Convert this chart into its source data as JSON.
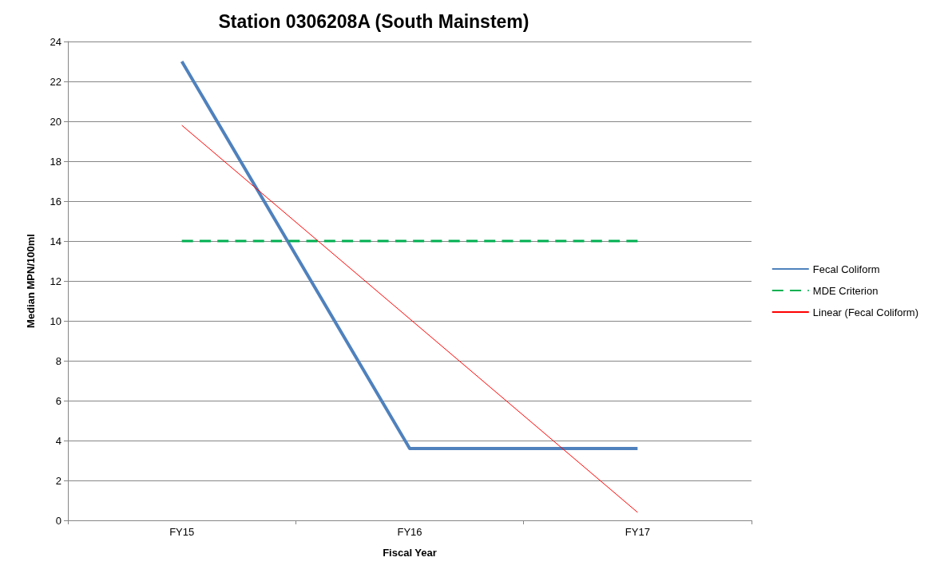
{
  "chart_data": {
    "type": "line",
    "title": "Station 0306208A (South Mainstem)",
    "xlabel": "Fiscal Year",
    "ylabel": "Median MPN/100ml",
    "categories": [
      "FY15",
      "FY16",
      "FY17"
    ],
    "series": [
      {
        "name": "Fecal Coliform",
        "color": "#4f81bd",
        "values": [
          23,
          3.6,
          3.6
        ],
        "line_style": "solid"
      },
      {
        "name": "MDE Criterion",
        "color": "#00b050",
        "values": [
          14,
          14,
          14
        ],
        "line_style": "dashed"
      },
      {
        "name": "Linear (Fecal Coliform)",
        "color": "#ff0000",
        "values": [
          19.8,
          10.1,
          0.4
        ],
        "line_style": "solid"
      }
    ],
    "ylim": [
      0,
      24
    ],
    "yticks": [
      0,
      2,
      4,
      6,
      8,
      10,
      12,
      14,
      16,
      18,
      20,
      22,
      24
    ],
    "grid": "y",
    "legend": "right",
    "marker": "none"
  }
}
